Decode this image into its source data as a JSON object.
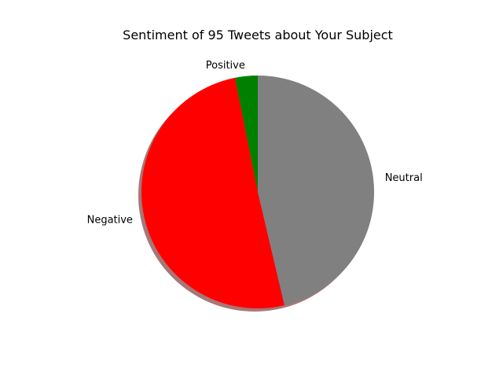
{
  "chart_data": {
    "type": "pie",
    "title": "Sentiment of 95 Tweets about Your Subject",
    "shadow": true,
    "start_angle_deg": 90,
    "direction": "counterclockwise",
    "slices": [
      {
        "label": "Positive",
        "value": 3,
        "color": "#008000"
      },
      {
        "label": "Negative",
        "value": 48,
        "color": "#ff0000"
      },
      {
        "label": "Neutral",
        "value": 44,
        "color": "#808080"
      }
    ]
  }
}
